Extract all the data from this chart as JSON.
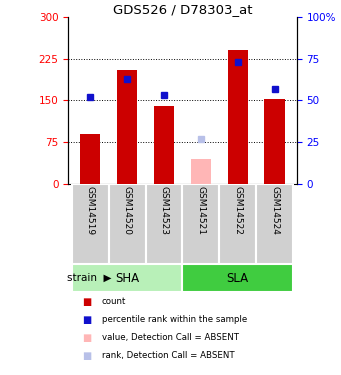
{
  "title": "GDS526 / D78303_at",
  "samples": [
    "GSM14519",
    "GSM14520",
    "GSM14523",
    "GSM14521",
    "GSM14522",
    "GSM14524"
  ],
  "bar_values": [
    90,
    205,
    140,
    45,
    240,
    152
  ],
  "bar_colors": [
    "#cc0000",
    "#cc0000",
    "#cc0000",
    "#ffb6b6",
    "#cc0000",
    "#cc0000"
  ],
  "dot_values": [
    52,
    63,
    53,
    27,
    73,
    57
  ],
  "dot_colors": [
    "#1010cc",
    "#1010cc",
    "#1010cc",
    "#b8c0e8",
    "#1010cc",
    "#1010cc"
  ],
  "ylim_left": [
    0,
    300
  ],
  "ylim_right": [
    0,
    100
  ],
  "left_ticks": [
    0,
    75,
    150,
    225,
    300
  ],
  "right_ticks": [
    0,
    25,
    50,
    75,
    100
  ],
  "right_tick_labels": [
    "0",
    "25",
    "50",
    "75",
    "100%"
  ],
  "dotted_lines": [
    75,
    150,
    225
  ],
  "sha_color": "#b8f0b8",
  "sla_color": "#40cc40",
  "sample_bg": "#d0d0d0",
  "bar_width": 0.55,
  "legend_items": [
    {
      "color": "#cc0000",
      "label": "count"
    },
    {
      "color": "#1010cc",
      "label": "percentile rank within the sample"
    },
    {
      "color": "#ffb6b6",
      "label": "value, Detection Call = ABSENT"
    },
    {
      "color": "#b8c0e8",
      "label": "rank, Detection Call = ABSENT"
    }
  ]
}
